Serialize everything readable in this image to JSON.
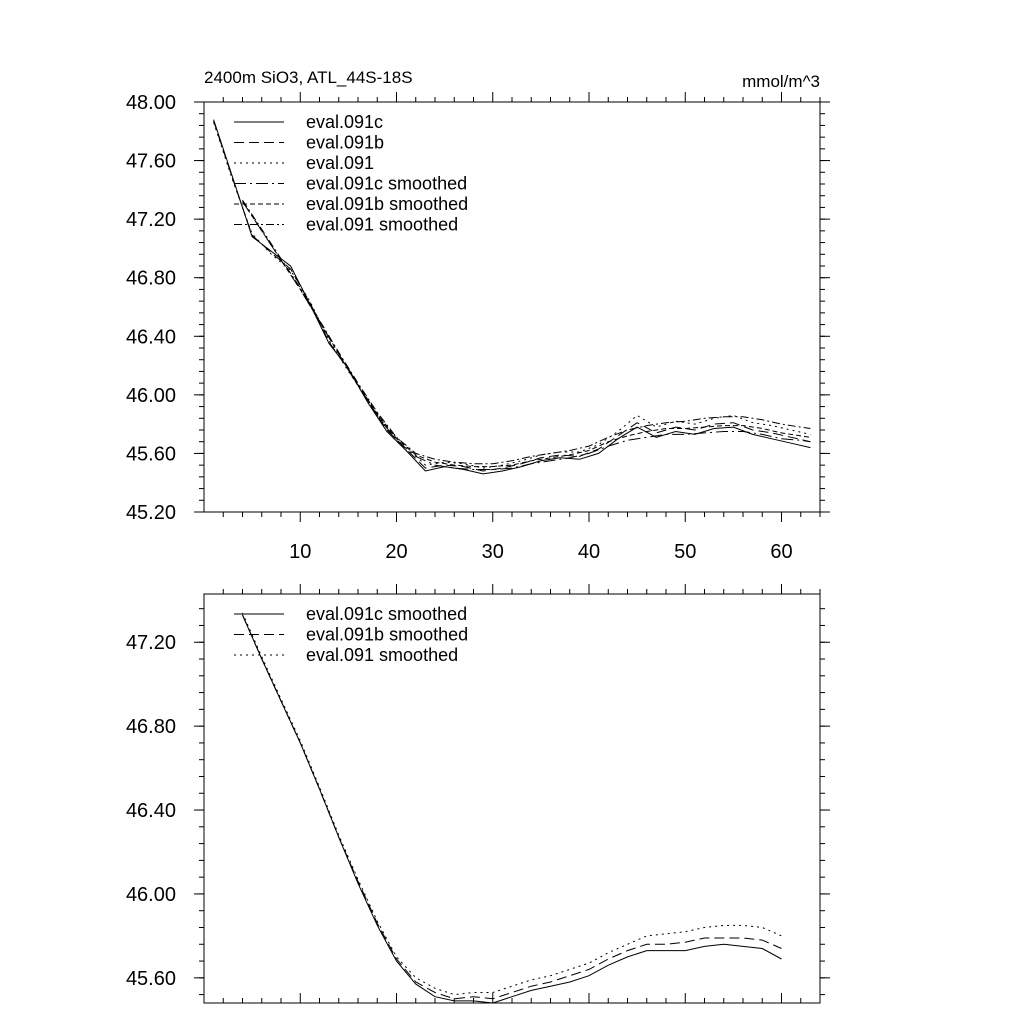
{
  "figure": {
    "title_left": "2400m SiO3, ATL_44S-18S",
    "title_right": "mmol/m^3"
  },
  "chart_data": [
    {
      "type": "line",
      "title": "2400m SiO3, ATL_44S-18S",
      "units": "mmol/m^3",
      "xlim": [
        0,
        64
      ],
      "ylim": [
        45.2,
        48.0
      ],
      "x_ticks": [
        10,
        20,
        30,
        40,
        50,
        60
      ],
      "x_tick_labels": [
        "10",
        "20",
        "30",
        "40",
        "50",
        "60"
      ],
      "y_ticks": [
        45.2,
        45.6,
        46.0,
        46.4,
        46.8,
        47.2,
        47.6,
        48.0
      ],
      "y_tick_labels": [
        "45.20",
        "45.60",
        "46.00",
        "46.40",
        "46.80",
        "47.20",
        "47.60",
        "48.00"
      ],
      "legend_position": "top-left",
      "series": [
        {
          "name": "eval.091c",
          "dash": "solid",
          "x": [
            1,
            3,
            5,
            7,
            9,
            11,
            13,
            15,
            17,
            19,
            21,
            23,
            25,
            27,
            29,
            31,
            33,
            35,
            37,
            39,
            41,
            43,
            45,
            47,
            49,
            51,
            53,
            55,
            57,
            59,
            61,
            63
          ],
          "y": [
            47.88,
            47.48,
            47.08,
            46.98,
            46.88,
            46.62,
            46.35,
            46.18,
            45.95,
            45.75,
            45.62,
            45.48,
            45.51,
            45.49,
            45.46,
            45.48,
            45.51,
            45.55,
            45.57,
            45.56,
            45.6,
            45.7,
            45.78,
            45.71,
            45.75,
            45.73,
            45.77,
            45.78,
            45.73,
            45.7,
            45.67,
            45.64
          ]
        },
        {
          "name": "eval.091b",
          "dash": "10,5",
          "x": [
            1,
            3,
            5,
            7,
            9,
            11,
            13,
            15,
            17,
            19,
            21,
            23,
            25,
            27,
            29,
            31,
            33,
            35,
            37,
            39,
            41,
            43,
            45,
            47,
            49,
            51,
            53,
            55,
            57,
            59,
            61,
            63
          ],
          "y": [
            47.87,
            47.47,
            47.09,
            46.97,
            46.86,
            46.63,
            46.36,
            46.17,
            45.96,
            45.76,
            45.63,
            45.5,
            45.52,
            45.51,
            45.48,
            45.5,
            45.53,
            45.57,
            45.59,
            45.58,
            45.63,
            45.72,
            45.81,
            45.74,
            45.78,
            45.76,
            45.8,
            45.81,
            45.76,
            45.74,
            45.71,
            45.68
          ]
        },
        {
          "name": "eval.091",
          "dash": "2,4",
          "x": [
            1,
            3,
            5,
            7,
            9,
            11,
            13,
            15,
            17,
            19,
            21,
            23,
            25,
            27,
            29,
            31,
            33,
            35,
            37,
            39,
            41,
            43,
            45,
            47,
            49,
            51,
            53,
            55,
            57,
            59,
            61,
            63
          ],
          "y": [
            47.86,
            47.46,
            47.1,
            46.96,
            46.85,
            46.64,
            46.37,
            46.16,
            45.97,
            45.77,
            45.65,
            45.52,
            45.54,
            45.53,
            45.5,
            45.52,
            45.55,
            45.59,
            45.61,
            45.61,
            45.66,
            45.75,
            45.86,
            45.78,
            45.82,
            45.8,
            45.84,
            45.86,
            45.81,
            45.79,
            45.76,
            45.73
          ]
        },
        {
          "name": "eval.091c smoothed",
          "dash": "12,4,2,4",
          "x": [
            4,
            6,
            8,
            10,
            12,
            14,
            16,
            18,
            20,
            22,
            24,
            26,
            28,
            30,
            32,
            34,
            36,
            38,
            40,
            42,
            44,
            46,
            48,
            50,
            52,
            54,
            56,
            58,
            60,
            62,
            63
          ],
          "y": [
            47.32,
            47.12,
            46.92,
            46.72,
            46.5,
            46.28,
            46.06,
            45.86,
            45.69,
            45.58,
            45.52,
            45.5,
            45.49,
            45.49,
            45.5,
            45.53,
            45.55,
            45.57,
            45.6,
            45.65,
            45.69,
            45.71,
            45.73,
            45.73,
            45.74,
            45.75,
            45.75,
            45.73,
            45.7,
            45.69,
            45.68
          ]
        },
        {
          "name": "eval.091b smoothed",
          "dash": "5,3",
          "x": [
            4,
            6,
            8,
            10,
            12,
            14,
            16,
            18,
            20,
            22,
            24,
            26,
            28,
            30,
            32,
            34,
            36,
            38,
            40,
            42,
            44,
            46,
            48,
            50,
            52,
            54,
            56,
            58,
            60,
            62,
            63
          ],
          "y": [
            47.32,
            47.12,
            46.92,
            46.72,
            46.5,
            46.28,
            46.07,
            45.87,
            45.7,
            45.59,
            45.54,
            45.52,
            45.51,
            45.51,
            45.52,
            45.55,
            45.57,
            45.59,
            45.62,
            45.68,
            45.72,
            45.75,
            45.77,
            45.77,
            45.78,
            45.79,
            45.79,
            45.77,
            45.74,
            45.72,
            45.71
          ]
        },
        {
          "name": "eval.091 smoothed",
          "dash": "8,3,2,3",
          "x": [
            4,
            6,
            8,
            10,
            12,
            14,
            16,
            18,
            20,
            22,
            24,
            26,
            28,
            30,
            32,
            34,
            36,
            38,
            40,
            42,
            44,
            46,
            48,
            50,
            52,
            54,
            56,
            58,
            60,
            62,
            63
          ],
          "y": [
            47.33,
            47.13,
            46.93,
            46.73,
            46.51,
            46.29,
            46.08,
            45.88,
            45.71,
            45.6,
            45.56,
            45.54,
            45.53,
            45.53,
            45.55,
            45.58,
            45.6,
            45.62,
            45.65,
            45.71,
            45.76,
            45.79,
            45.81,
            45.82,
            45.84,
            45.85,
            45.85,
            45.83,
            45.8,
            45.78,
            45.77
          ]
        }
      ]
    },
    {
      "type": "line",
      "title": "",
      "xlim": [
        0,
        64
      ],
      "ylim": [
        45.48,
        47.43
      ],
      "x_ticks": [
        10,
        20,
        30,
        40,
        50,
        60
      ],
      "x_tick_labels": [],
      "y_ticks": [
        45.6,
        46.0,
        46.4,
        46.8,
        47.2
      ],
      "y_tick_labels": [
        "45.60",
        "46.00",
        "46.40",
        "46.80",
        "47.20"
      ],
      "legend_position": "top-left",
      "series": [
        {
          "name": "eval.091c smoothed",
          "dash": "solid",
          "x": [
            4,
            6,
            8,
            10,
            12,
            14,
            16,
            18,
            20,
            22,
            24,
            26,
            28,
            30,
            32,
            34,
            36,
            38,
            40,
            42,
            44,
            46,
            48,
            50,
            52,
            54,
            56,
            58,
            60
          ],
          "y": [
            47.33,
            47.12,
            46.92,
            46.72,
            46.5,
            46.27,
            46.05,
            45.85,
            45.68,
            45.57,
            45.51,
            45.49,
            45.49,
            45.48,
            45.51,
            45.54,
            45.56,
            45.58,
            45.61,
            45.66,
            45.7,
            45.73,
            45.73,
            45.73,
            45.75,
            45.76,
            45.75,
            45.74,
            45.69
          ]
        },
        {
          "name": "eval.091b smoothed",
          "dash": "10,5",
          "x": [
            4,
            6,
            8,
            10,
            12,
            14,
            16,
            18,
            20,
            22,
            24,
            26,
            28,
            30,
            32,
            34,
            36,
            38,
            40,
            42,
            44,
            46,
            48,
            50,
            52,
            54,
            56,
            58,
            60
          ],
          "y": [
            47.33,
            47.12,
            46.92,
            46.72,
            46.5,
            46.27,
            46.06,
            45.86,
            45.69,
            45.58,
            45.53,
            45.5,
            45.51,
            45.5,
            45.53,
            45.56,
            45.58,
            45.61,
            45.64,
            45.69,
            45.73,
            45.76,
            45.76,
            45.77,
            45.79,
            45.79,
            45.79,
            45.78,
            45.74
          ]
        },
        {
          "name": "eval.091 smoothed",
          "dash": "2,4",
          "x": [
            4,
            6,
            8,
            10,
            12,
            14,
            16,
            18,
            20,
            22,
            24,
            26,
            28,
            30,
            32,
            34,
            36,
            38,
            40,
            42,
            44,
            46,
            48,
            50,
            52,
            54,
            56,
            58,
            60
          ],
          "y": [
            47.34,
            47.13,
            46.93,
            46.73,
            46.51,
            46.28,
            46.07,
            45.87,
            45.7,
            45.6,
            45.55,
            45.52,
            45.53,
            45.53,
            45.56,
            45.59,
            45.61,
            45.64,
            45.67,
            45.72,
            45.76,
            45.8,
            45.81,
            45.82,
            45.84,
            45.85,
            45.85,
            45.84,
            45.8
          ]
        }
      ]
    }
  ]
}
